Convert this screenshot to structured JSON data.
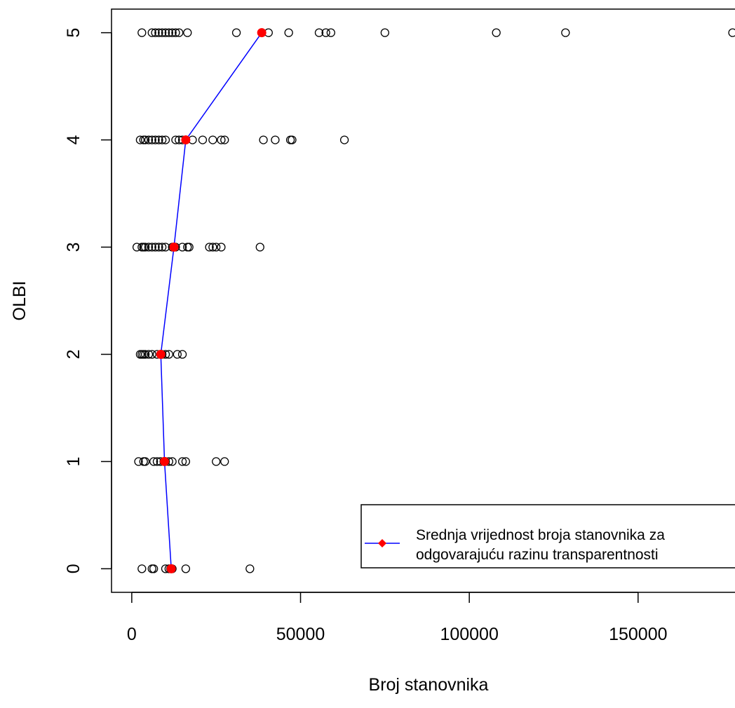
{
  "chart_data": {
    "type": "scatter",
    "title": "",
    "xlabel": "Broj stanovnika",
    "ylabel": "OLBI",
    "xlim": [
      -6000,
      181000
    ],
    "ylim": [
      -0.22,
      5.22
    ],
    "x_ticks": [
      0,
      50000,
      100000,
      150000
    ],
    "x_tick_labels": [
      "0",
      "50000",
      "100000",
      "150000"
    ],
    "y_ticks": [
      0,
      1,
      2,
      3,
      4,
      5
    ],
    "y_tick_labels": [
      "0",
      "1",
      "2",
      "3",
      "4",
      "5"
    ],
    "grid": false,
    "colors": {
      "points": "#000000",
      "mean_line": "#0000ff",
      "mean_points": "#ff0000"
    },
    "series": [
      {
        "kind": "points",
        "marker": "open-circle",
        "points": [
          [
            3000,
            0
          ],
          [
            6000,
            0
          ],
          [
            6500,
            0
          ],
          [
            10000,
            0
          ],
          [
            11000,
            0
          ],
          [
            11500,
            0
          ],
          [
            12000,
            0
          ],
          [
            16000,
            0
          ],
          [
            35000,
            0
          ],
          [
            2000,
            1
          ],
          [
            3500,
            1
          ],
          [
            4000,
            1
          ],
          [
            6500,
            1
          ],
          [
            7500,
            1
          ],
          [
            8500,
            1
          ],
          [
            9500,
            1
          ],
          [
            10000,
            1
          ],
          [
            11000,
            1
          ],
          [
            12000,
            1
          ],
          [
            15000,
            1
          ],
          [
            16000,
            1
          ],
          [
            25000,
            1
          ],
          [
            27500,
            1
          ],
          [
            2500,
            2
          ],
          [
            3000,
            2
          ],
          [
            3500,
            2
          ],
          [
            4000,
            2
          ],
          [
            5000,
            2
          ],
          [
            6000,
            2
          ],
          [
            7500,
            2
          ],
          [
            9000,
            2
          ],
          [
            10000,
            2
          ],
          [
            11000,
            2
          ],
          [
            13500,
            2
          ],
          [
            15000,
            2
          ],
          [
            1500,
            3
          ],
          [
            3000,
            3
          ],
          [
            3500,
            3
          ],
          [
            4000,
            3
          ],
          [
            5000,
            3
          ],
          [
            6000,
            3
          ],
          [
            7000,
            3
          ],
          [
            8000,
            3
          ],
          [
            9000,
            3
          ],
          [
            10000,
            3
          ],
          [
            12000,
            3
          ],
          [
            13000,
            3
          ],
          [
            15000,
            3
          ],
          [
            16500,
            3
          ],
          [
            17000,
            3
          ],
          [
            23000,
            3
          ],
          [
            24000,
            3
          ],
          [
            25000,
            3
          ],
          [
            26500,
            3
          ],
          [
            38000,
            3
          ],
          [
            2500,
            4
          ],
          [
            3500,
            4
          ],
          [
            4000,
            4
          ],
          [
            5000,
            4
          ],
          [
            6000,
            4
          ],
          [
            7000,
            4
          ],
          [
            8000,
            4
          ],
          [
            9000,
            4
          ],
          [
            10000,
            4
          ],
          [
            13000,
            4
          ],
          [
            14000,
            4
          ],
          [
            15000,
            4
          ],
          [
            16000,
            4
          ],
          [
            18000,
            4
          ],
          [
            21000,
            4
          ],
          [
            24000,
            4
          ],
          [
            26500,
            4
          ],
          [
            27500,
            4
          ],
          [
            39000,
            4
          ],
          [
            42500,
            4
          ],
          [
            47000,
            4
          ],
          [
            47500,
            4
          ],
          [
            63000,
            4
          ],
          [
            3000,
            5
          ],
          [
            6000,
            5
          ],
          [
            7000,
            5
          ],
          [
            8000,
            5
          ],
          [
            9000,
            5
          ],
          [
            10000,
            5
          ],
          [
            11000,
            5
          ],
          [
            12000,
            5
          ],
          [
            13000,
            5
          ],
          [
            14000,
            5
          ],
          [
            16500,
            5
          ],
          [
            31000,
            5
          ],
          [
            40500,
            5
          ],
          [
            46500,
            5
          ],
          [
            55500,
            5
          ],
          [
            57500,
            5
          ],
          [
            59000,
            5
          ],
          [
            75000,
            5
          ],
          [
            108000,
            5
          ],
          [
            128500,
            5
          ],
          [
            178000,
            5
          ]
        ]
      },
      {
        "kind": "mean-line",
        "name": "Srednja vrijednost broja stanovnika za odgovarajuću razinu  transparentnosti",
        "x": [
          11700,
          9700,
          8600,
          12500,
          16000,
          38500
        ],
        "y": [
          0,
          1,
          2,
          3,
          4,
          5
        ]
      }
    ],
    "legend": {
      "position": "bottom-right",
      "lines": [
        "Srednja vrijednost broja stanovnika za",
        "odgovarajuću razinu  transparentnosti"
      ]
    }
  }
}
